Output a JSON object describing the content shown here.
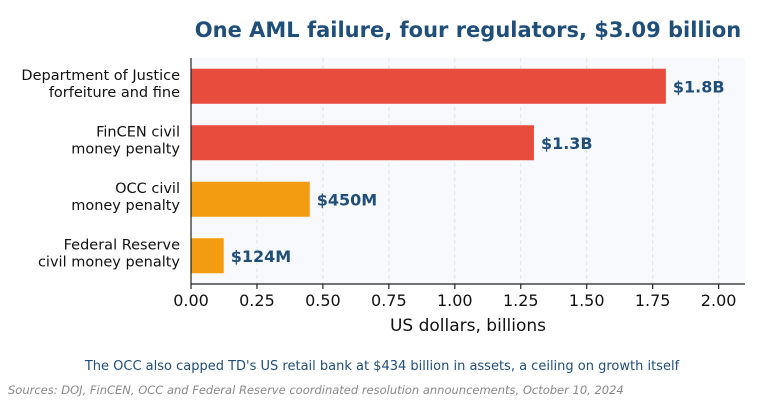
{
  "chart_data": {
    "type": "bar",
    "orientation": "horizontal",
    "title": "One AML failure, four regulators, $3.09 billion",
    "categories": [
      [
        "Department of Justice",
        "forfeiture and fine"
      ],
      [
        "FinCEN civil",
        "money penalty"
      ],
      [
        "OCC civil",
        "money penalty"
      ],
      [
        "Federal Reserve",
        "civil money penalty"
      ]
    ],
    "values": [
      1.8,
      1.3,
      0.45,
      0.124
    ],
    "data_labels": [
      "$1.8B",
      "$1.3B",
      "$450M",
      "$124M"
    ],
    "bar_colors": [
      "#e84c3d",
      "#e84c3d",
      "#f39c12",
      "#f39c12"
    ],
    "xlabel": "US dollars, billions",
    "ylabel": "",
    "xlim": [
      0,
      2.1
    ],
    "xticks": [
      0.0,
      0.25,
      0.5,
      0.75,
      1.0,
      1.25,
      1.5,
      1.75,
      2.0
    ],
    "xtick_labels": [
      "0.00",
      "0.25",
      "0.50",
      "0.75",
      "1.00",
      "1.25",
      "1.50",
      "1.75",
      "2.00"
    ],
    "grid": "vertical dashed",
    "legend": "none"
  },
  "annotation": "The OCC also capped TD's US retail bank at $434 billion in assets, a ceiling on growth itself",
  "source": "Sources: DOJ, FinCEN, OCC and Federal Reserve coordinated resolution announcements, October 10, 2024",
  "colors": {
    "title": "#1f4e79",
    "data_label": "#1f4e79",
    "annotation": "#1f4e79",
    "source": "#888888",
    "plot_background": "#f7f9fc",
    "grid": "#dde3ea",
    "axis": "#222222"
  }
}
